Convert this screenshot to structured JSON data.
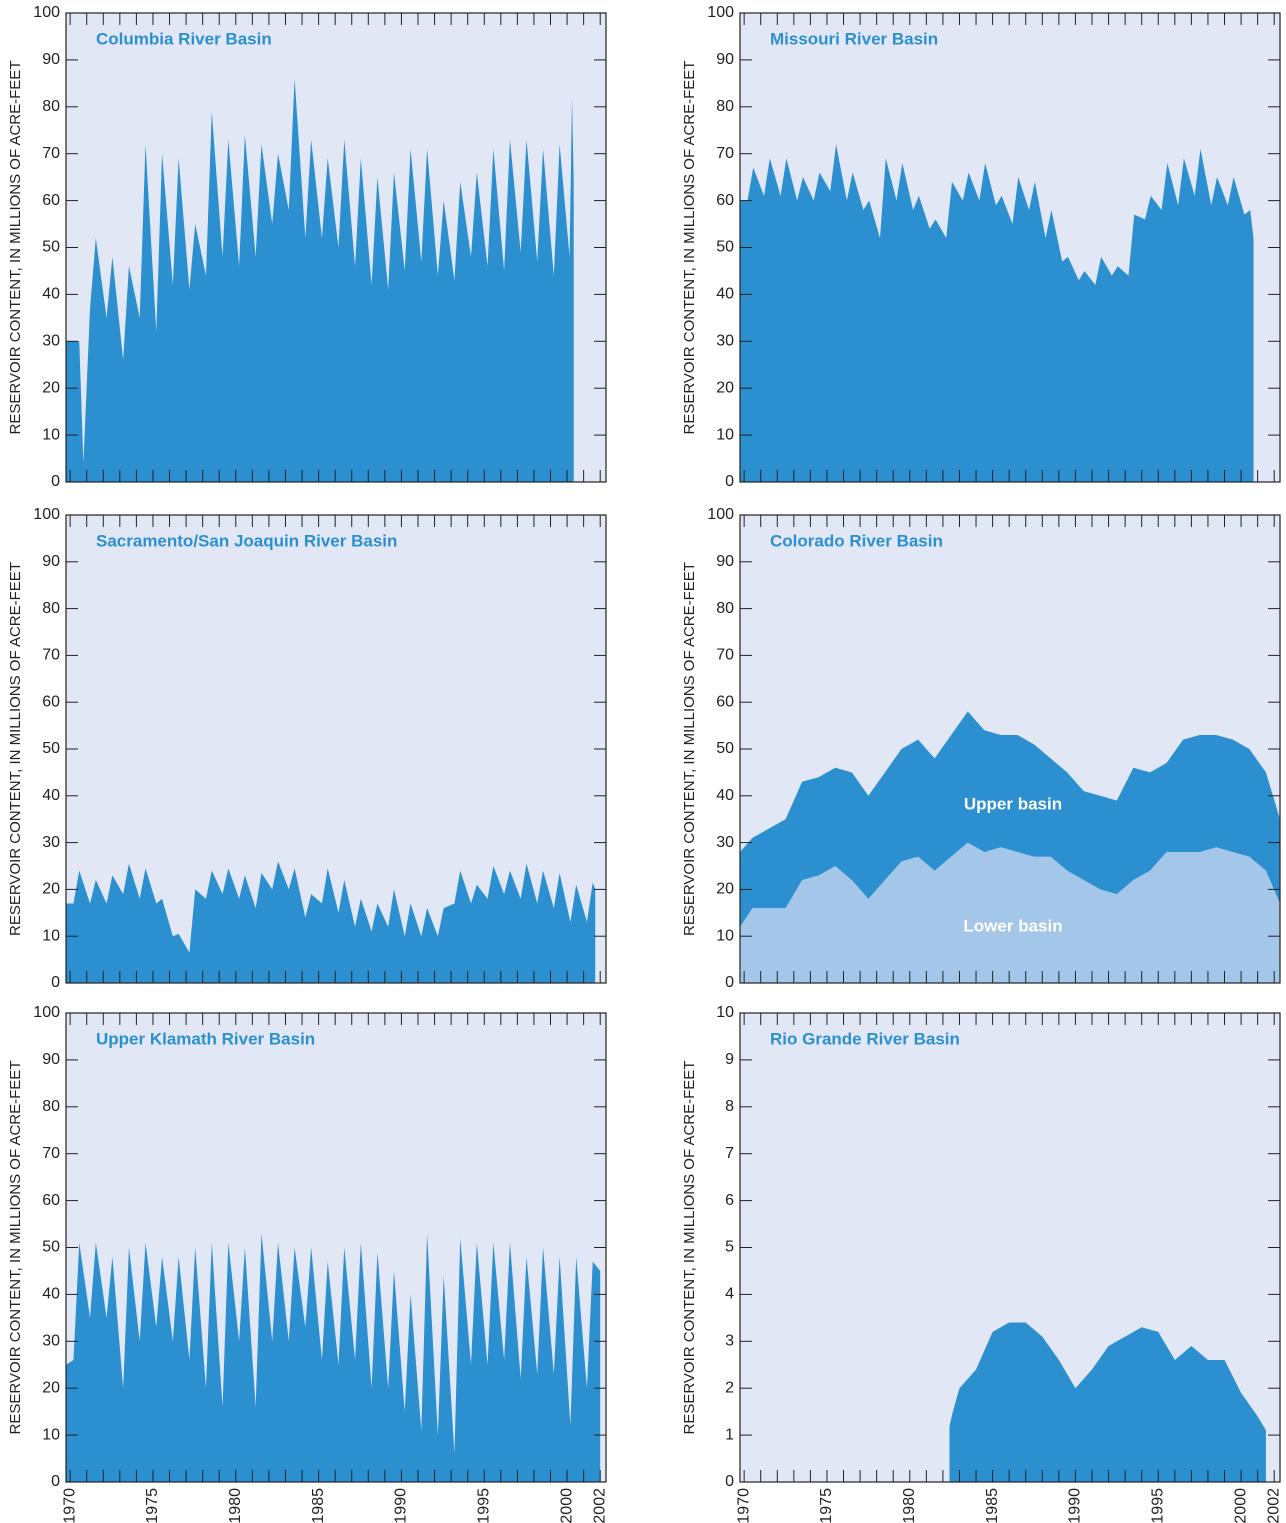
{
  "chart_data": [
    {
      "type": "area",
      "title": "Columbia River Basin",
      "y_label": "RESERVOIR CONTENT, IN MILLIONS OF ACRE-FEET",
      "color": "#2b8fd0",
      "x": [
        1969.75,
        1970.55,
        1970.8,
        1971.2,
        1971.55,
        1972.2,
        1972.55,
        1973.2,
        1973.55,
        1974.2,
        1974.55,
        1975.2,
        1975.55,
        1976.2,
        1976.55,
        1977.2,
        1977.55,
        1978.2,
        1978.55,
        1979.2,
        1979.55,
        1980.2,
        1980.55,
        1981.2,
        1981.55,
        1982.2,
        1982.55,
        1983.2,
        1983.55,
        1984.2,
        1984.55,
        1985.2,
        1985.55,
        1986.2,
        1986.55,
        1987.2,
        1987.55,
        1988.2,
        1988.55,
        1989.2,
        1989.55,
        1990.2,
        1990.55,
        1991.2,
        1991.55,
        1992.2,
        1992.55,
        1993.2,
        1993.55,
        1994.2,
        1994.55,
        1995.2,
        1995.55,
        1996.2,
        1996.55,
        1997.2,
        1997.55,
        1998.2,
        1998.55,
        1999.2,
        1999.55,
        2000.15,
        2000.3,
        2000.4
      ],
      "values": [
        30,
        30,
        4,
        37,
        52,
        35,
        48,
        26,
        46,
        35,
        72,
        32,
        70,
        42,
        69,
        41,
        55,
        44,
        79,
        48,
        73,
        46,
        74,
        48,
        72,
        55,
        70,
        58,
        86,
        52,
        73,
        52,
        69,
        50,
        73,
        46,
        69,
        42,
        65,
        41,
        66,
        45,
        71,
        47,
        71,
        44,
        60,
        43,
        64,
        48,
        66,
        46,
        71,
        45,
        73,
        49,
        73,
        47,
        71,
        44,
        72,
        48,
        82,
        64
      ],
      "xlim": [
        1969.75,
        2002.35
      ],
      "ylim": [
        0,
        100
      ],
      "yticks": [
        0,
        10,
        20,
        30,
        40,
        50,
        60,
        70,
        80,
        90,
        100
      ],
      "xminorticks": [
        1970,
        1971,
        1972,
        1973,
        1974,
        1975,
        1976,
        1977,
        1978,
        1979,
        1980,
        1981,
        1982,
        1983,
        1984,
        1985,
        1986,
        1987,
        1988,
        1989,
        1990,
        1991,
        1992,
        1993,
        1994,
        1995,
        1996,
        1997,
        1998,
        1999,
        2000,
        2001,
        2002
      ]
    },
    {
      "type": "area",
      "title": "Missouri River Basin",
      "y_label": "RESERVOIR CONTENT, IN MILLIONS OF ACRE-FEET",
      "color": "#2b8fd0",
      "x": [
        1969.75,
        1970.2,
        1970.55,
        1971.2,
        1971.55,
        1972.2,
        1972.55,
        1973.2,
        1973.55,
        1974.2,
        1974.55,
        1975.2,
        1975.55,
        1976.2,
        1976.55,
        1977.2,
        1977.55,
        1978.2,
        1978.55,
        1979.2,
        1979.55,
        1980.2,
        1980.55,
        1981.2,
        1981.55,
        1982.2,
        1982.55,
        1983.2,
        1983.55,
        1984.2,
        1984.55,
        1985.2,
        1985.55,
        1986.2,
        1986.55,
        1987.2,
        1987.55,
        1988.2,
        1988.55,
        1989.2,
        1989.55,
        1990.2,
        1990.55,
        1991.2,
        1991.55,
        1992.2,
        1992.55,
        1993.2,
        1993.55,
        1994.2,
        1994.55,
        1995.2,
        1995.55,
        1996.2,
        1996.55,
        1997.2,
        1997.55,
        1998.2,
        1998.55,
        1999.2,
        1999.55,
        2000.2,
        2000.55,
        2000.75
      ],
      "values": [
        60,
        60,
        67,
        61,
        69,
        61,
        69,
        60,
        65,
        60,
        66,
        62,
        72,
        60,
        66,
        58,
        60,
        52,
        69,
        60,
        68,
        58,
        61,
        54,
        56,
        52,
        64,
        60,
        66,
        60,
        68,
        59,
        61,
        55,
        65,
        58,
        64,
        52,
        58,
        47,
        48,
        43,
        45,
        42,
        48,
        44,
        46,
        44,
        57,
        56,
        61,
        58,
        68,
        59,
        69,
        61,
        71,
        59,
        65,
        59,
        65,
        57,
        58,
        52
      ],
      "xlim": [
        1969.75,
        2002.35
      ],
      "ylim": [
        0,
        100
      ],
      "yticks": [
        0,
        10,
        20,
        30,
        40,
        50,
        60,
        70,
        80,
        90,
        100
      ],
      "xminorticks": [
        1970,
        1971,
        1972,
        1973,
        1974,
        1975,
        1976,
        1977,
        1978,
        1979,
        1980,
        1981,
        1982,
        1983,
        1984,
        1985,
        1986,
        1987,
        1988,
        1989,
        1990,
        1991,
        1992,
        1993,
        1994,
        1995,
        1996,
        1997,
        1998,
        1999,
        2000,
        2001,
        2002
      ]
    },
    {
      "type": "area",
      "title": "Sacramento/San Joaquin River Basin",
      "y_label": "RESERVOIR CONTENT, IN MILLIONS OF ACRE-FEET",
      "color": "#2b8fd0",
      "x": [
        1969.75,
        1970.2,
        1970.55,
        1971.2,
        1971.55,
        1972.2,
        1972.55,
        1973.2,
        1973.55,
        1974.2,
        1974.55,
        1975.2,
        1975.55,
        1976.2,
        1976.55,
        1977.2,
        1977.55,
        1978.2,
        1978.55,
        1979.2,
        1979.55,
        1980.2,
        1980.55,
        1981.2,
        1981.55,
        1982.2,
        1982.55,
        1983.2,
        1983.55,
        1984.2,
        1984.55,
        1985.2,
        1985.55,
        1986.2,
        1986.55,
        1987.2,
        1987.55,
        1988.2,
        1988.55,
        1989.2,
        1989.55,
        1990.2,
        1990.55,
        1991.2,
        1991.55,
        1992.2,
        1992.55,
        1993.2,
        1993.55,
        1994.2,
        1994.55,
        1995.2,
        1995.55,
        1996.2,
        1996.55,
        1997.2,
        1997.55,
        1998.2,
        1998.55,
        1999.2,
        1999.55,
        2000.2,
        2000.55,
        2001.2,
        2001.55,
        2001.7
      ],
      "values": [
        17,
        17,
        24,
        17,
        22,
        17,
        23,
        19,
        25.5,
        18,
        24.5,
        17,
        18,
        10,
        10.5,
        6.5,
        20,
        18,
        24,
        19,
        24.5,
        18,
        23,
        16,
        23.5,
        20,
        26,
        20,
        24.5,
        14,
        19,
        17,
        24.5,
        15,
        22,
        12,
        18,
        11,
        17,
        12,
        20,
        10,
        17,
        10,
        16,
        10,
        16,
        17,
        24,
        17,
        21,
        18,
        25,
        19,
        24,
        18,
        25.5,
        17,
        24,
        16,
        23.5,
        13,
        21,
        13,
        21.5,
        20
      ],
      "xlim": [
        1969.75,
        2002.35
      ],
      "ylim": [
        0,
        100
      ],
      "yticks": [
        0,
        10,
        20,
        30,
        40,
        50,
        60,
        70,
        80,
        90,
        100
      ],
      "xminorticks": [
        1970,
        1971,
        1972,
        1973,
        1974,
        1975,
        1976,
        1977,
        1978,
        1979,
        1980,
        1981,
        1982,
        1983,
        1984,
        1985,
        1986,
        1987,
        1988,
        1989,
        1990,
        1991,
        1992,
        1993,
        1994,
        1995,
        1996,
        1997,
        1998,
        1999,
        2000,
        2001,
        2002
      ]
    },
    {
      "type": "area",
      "stacked": true,
      "title": "Colorado River Basin",
      "y_label": "RESERVOIR CONTENT, IN MILLIONS OF ACRE-FEET",
      "x": [
        1969.75,
        1970.5,
        1971.5,
        1972.5,
        1973.5,
        1974.5,
        1975.5,
        1976.5,
        1977.5,
        1978.5,
        1979.5,
        1980.5,
        1981.5,
        1982.5,
        1983.5,
        1984.5,
        1985.5,
        1986.5,
        1987.5,
        1988.5,
        1989.5,
        1990.5,
        1991.5,
        1992.5,
        1993.5,
        1994.5,
        1995.5,
        1996.5,
        1997.5,
        1998.5,
        1999.5,
        2000.5,
        2001.5,
        2002.35
      ],
      "series": [
        {
          "name": "Lower basin",
          "color": "#a3c6e9",
          "values": [
            12,
            16,
            16,
            16,
            22,
            23,
            25,
            22,
            18,
            22,
            26,
            27,
            24,
            27,
            30,
            28,
            29,
            28,
            27,
            27,
            24,
            22,
            20,
            19,
            22,
            24,
            28,
            28,
            28,
            29,
            28,
            27,
            24,
            17
          ]
        },
        {
          "name": "Upper basin",
          "color": "#2b8fd0",
          "values": [
            16,
            15,
            17,
            19,
            21,
            21,
            21,
            23,
            22,
            23,
            24,
            25,
            24,
            26,
            28,
            26,
            24,
            25,
            24,
            21,
            21,
            19,
            20,
            20,
            24,
            21,
            19,
            24,
            25,
            24,
            24,
            23,
            21,
            18
          ]
        }
      ],
      "xlim": [
        1969.75,
        2002.35
      ],
      "ylim": [
        0,
        100
      ],
      "yticks": [
        0,
        10,
        20,
        30,
        40,
        50,
        60,
        70,
        80,
        90,
        100
      ],
      "xminorticks": [
        1970,
        1971,
        1972,
        1973,
        1974,
        1975,
        1976,
        1977,
        1978,
        1979,
        1980,
        1981,
        1982,
        1983,
        1984,
        1985,
        1986,
        1987,
        1988,
        1989,
        1990,
        1991,
        1992,
        1993,
        1994,
        1995,
        1996,
        1997,
        1998,
        1999,
        2000,
        2001,
        2002
      ]
    },
    {
      "type": "area",
      "title": "Upper Klamath River Basin",
      "y_label": "RESERVOIR CONTENT, IN MILLIONS OF ACRE-FEET",
      "color": "#2b8fd0",
      "x": [
        1969.75,
        1970.2,
        1970.55,
        1971.2,
        1971.55,
        1972.2,
        1972.55,
        1973.2,
        1973.55,
        1974.2,
        1974.55,
        1975.2,
        1975.55,
        1976.2,
        1976.55,
        1977.2,
        1977.55,
        1978.2,
        1978.55,
        1979.2,
        1979.55,
        1980.2,
        1980.55,
        1981.2,
        1981.55,
        1982.2,
        1982.55,
        1983.2,
        1983.55,
        1984.2,
        1984.55,
        1985.2,
        1985.55,
        1986.2,
        1986.55,
        1987.2,
        1987.55,
        1988.2,
        1988.55,
        1989.2,
        1989.55,
        1990.2,
        1990.55,
        1991.2,
        1991.55,
        1992.2,
        1992.55,
        1993.2,
        1993.55,
        1994.2,
        1994.55,
        1995.2,
        1995.55,
        1996.2,
        1996.55,
        1997.2,
        1997.55,
        1998.2,
        1998.55,
        1999.2,
        1999.55,
        2000.2,
        2000.55,
        2001.2,
        2001.55,
        2002.0
      ],
      "values": [
        25,
        26,
        51,
        35,
        51,
        35,
        48,
        20,
        50,
        30,
        51,
        33,
        48,
        30,
        48,
        26,
        50,
        20,
        51,
        16,
        51,
        30,
        50,
        16,
        53,
        30,
        51,
        30,
        50,
        33,
        50,
        26,
        47,
        25,
        50,
        26,
        51,
        20,
        49,
        20,
        45,
        15,
        40,
        11,
        53,
        10,
        44,
        6,
        52,
        25,
        51,
        25,
        51,
        26,
        51,
        22,
        48,
        23,
        50,
        23,
        48,
        12,
        48,
        20,
        47,
        45
      ],
      "xlim": [
        1969.75,
        2002.35
      ],
      "ylim": [
        0,
        100
      ],
      "yticks": [
        0,
        10,
        20,
        30,
        40,
        50,
        60,
        70,
        80,
        90,
        100
      ],
      "xticks": [
        1970,
        1975,
        1980,
        1985,
        1990,
        1995,
        2000,
        2002
      ],
      "xminorticks": [
        1970,
        1971,
        1972,
        1973,
        1974,
        1975,
        1976,
        1977,
        1978,
        1979,
        1980,
        1981,
        1982,
        1983,
        1984,
        1985,
        1986,
        1987,
        1988,
        1989,
        1990,
        1991,
        1992,
        1993,
        1994,
        1995,
        1996,
        1997,
        1998,
        1999,
        2000,
        2001,
        2002
      ]
    },
    {
      "type": "area",
      "title": "Rio Grande River Basin",
      "y_label": "RESERVOIR CONTENT, IN MILLIONS OF ACRE-FEET",
      "color": "#2b8fd0",
      "x": [
        1982.4,
        1982.6,
        1983,
        1984,
        1985,
        1986,
        1987,
        1988,
        1989,
        1990,
        1991,
        1992,
        1993,
        1994,
        1995,
        1996,
        1997,
        1998,
        1999,
        2000,
        2001,
        2001.5
      ],
      "values": [
        1.2,
        1.5,
        2.0,
        2.4,
        3.2,
        3.4,
        3.4,
        3.1,
        2.6,
        2.0,
        2.4,
        2.9,
        3.1,
        3.3,
        3.2,
        2.6,
        2.9,
        2.6,
        2.6,
        1.9,
        1.4,
        1.1
      ],
      "xlim": [
        1969.75,
        2002.35
      ],
      "ylim": [
        0,
        10
      ],
      "yticks": [
        0,
        1,
        2,
        3,
        4,
        5,
        6,
        7,
        8,
        9,
        10
      ],
      "xticks": [
        1970,
        1975,
        1980,
        1985,
        1990,
        1995,
        2000,
        2002
      ],
      "xminorticks": [
        1970,
        1971,
        1972,
        1973,
        1974,
        1975,
        1976,
        1977,
        1978,
        1979,
        1980,
        1981,
        1982,
        1983,
        1984,
        1985,
        1986,
        1987,
        1988,
        1989,
        1990,
        1991,
        1992,
        1993,
        1994,
        1995,
        1996,
        1997,
        1998,
        1999,
        2000,
        2001,
        2002
      ]
    }
  ]
}
